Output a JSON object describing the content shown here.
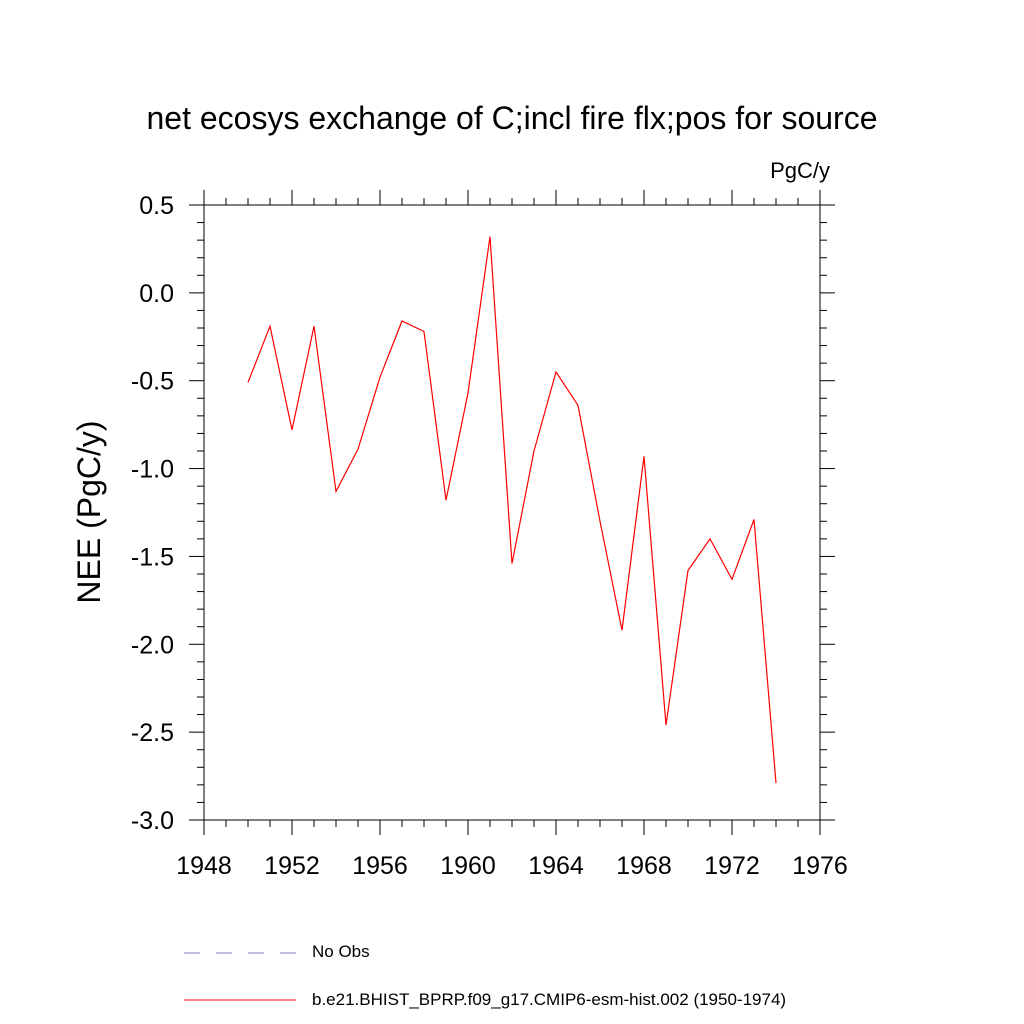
{
  "chart_data": {
    "type": "line",
    "title": "net ecosys exchange of C;incl fire flx;pos for source",
    "units_label": "PgC/y",
    "ylabel": "NEE  (PgC/y)",
    "xlabel": "",
    "xlim": [
      1948,
      1976
    ],
    "ylim": [
      -3.0,
      0.5
    ],
    "x_ticks": [
      1948,
      1952,
      1956,
      1960,
      1964,
      1968,
      1972,
      1976
    ],
    "x_tick_labels": [
      "1948",
      "1952",
      "1956",
      "1960",
      "1964",
      "1968",
      "1972",
      "1976"
    ],
    "y_ticks": [
      0.5,
      0.0,
      -0.5,
      -1.0,
      -1.5,
      -2.0,
      -2.5,
      -3.0
    ],
    "y_tick_labels": [
      "0.5",
      "0.0",
      "-0.5",
      "-1.0",
      "-1.5",
      "-2.0",
      "-2.5",
      "-3.0"
    ],
    "grid": false,
    "legend_position": "bottom",
    "series": [
      {
        "name": "b.e21.BHIST_BPRP.f09_g17.CMIP6-esm-hist.002 (1950-1974)",
        "color": "#ff0000",
        "style": "solid",
        "x": [
          1950,
          1951,
          1952,
          1953,
          1954,
          1955,
          1956,
          1957,
          1958,
          1959,
          1960,
          1961,
          1962,
          1963,
          1964,
          1965,
          1966,
          1967,
          1968,
          1969,
          1970,
          1971,
          1972,
          1973,
          1974
        ],
        "values": [
          -0.51,
          -0.19,
          -0.78,
          -0.19,
          -1.13,
          -0.89,
          -0.48,
          -0.16,
          -0.22,
          -1.18,
          -0.57,
          0.32,
          -1.54,
          -0.9,
          -0.45,
          -0.64,
          -1.3,
          -1.92,
          -0.93,
          -2.46,
          -1.58,
          -1.4,
          -1.63,
          -1.29,
          -2.79
        ]
      },
      {
        "name": "No Obs",
        "color": "#8080c0",
        "style": "dashed",
        "x": [],
        "values": []
      }
    ]
  }
}
